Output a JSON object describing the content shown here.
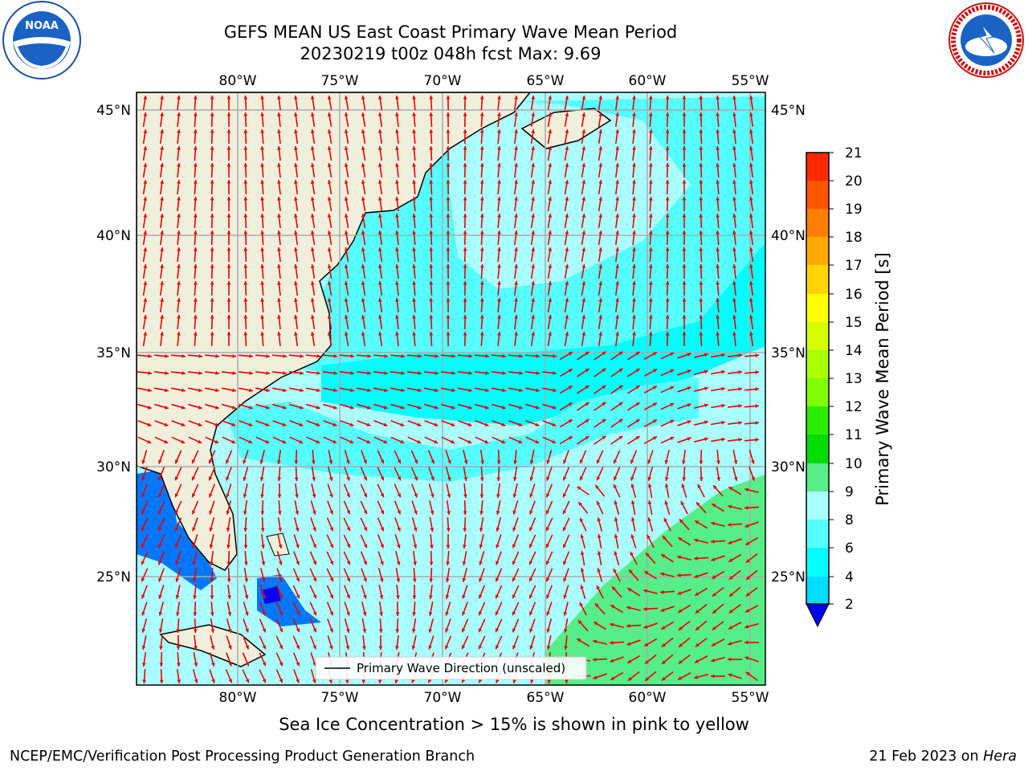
{
  "header": {
    "title_line1": "GEFS MEAN US East Coast Primary Wave Mean Period",
    "title_line2": "20230219 t00z 048h fcst   Max: 9.69"
  },
  "logos": {
    "left": "NOAA",
    "right": "NATIONAL WEATHER SERVICE"
  },
  "map": {
    "lon_ticks": [
      "80°W",
      "75°W",
      "70°W",
      "65°W",
      "60°W",
      "55°W"
    ],
    "lat_ticks": [
      "45°N",
      "40°N",
      "35°N",
      "30°N",
      "25°N"
    ],
    "legend_label": "Primary Wave Direction (unscaled)",
    "arrow_color": "#ee0000",
    "land_color": "#efefdc"
  },
  "colorbar": {
    "label": "Primary Wave Mean Period [s]",
    "ticks": [
      "21",
      "20",
      "19",
      "18",
      "17",
      "16",
      "15",
      "14",
      "13",
      "12",
      "11",
      "10",
      "9",
      "8",
      "6",
      "4",
      "2"
    ],
    "colors": [
      "#ff0000",
      "#ff2a00",
      "#ff5500",
      "#ff7f00",
      "#ffaa00",
      "#ffd400",
      "#ffff00",
      "#d4ff00",
      "#aaff00",
      "#7fff00",
      "#2aee00",
      "#00dd00",
      "#55ee88",
      "#aaffff",
      "#55ffff",
      "#00ffff",
      "#00ddff",
      "#0077ff",
      "#0000ee"
    ]
  },
  "caption": "Sea Ice Concentration > 15% is shown in pink to yellow",
  "footer": {
    "left": "NCEP/EMC/Verification Post Processing Product Generation Branch",
    "right_prefix": "21 Feb 2023 on ",
    "right_host": "Hera"
  }
}
